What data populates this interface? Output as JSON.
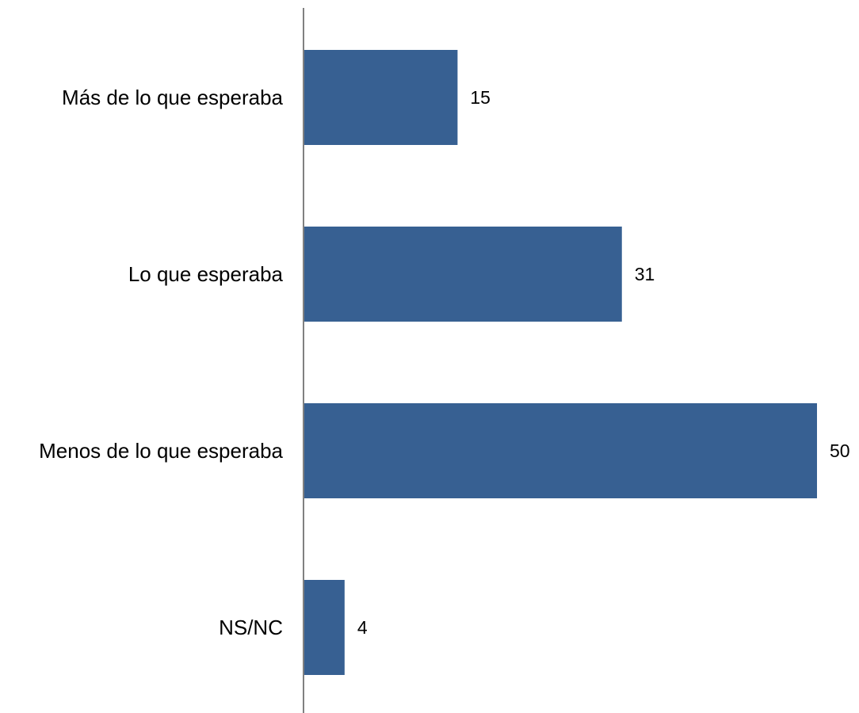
{
  "chart_data": {
    "type": "bar",
    "orientation": "horizontal",
    "categories": [
      "Más de lo que esperaba",
      "Lo que esperaba",
      "Menos de lo que esperaba",
      "NS/NC"
    ],
    "values": [
      15,
      31,
      50,
      4
    ],
    "data_labels": [
      "15",
      "31",
      "50",
      "4"
    ],
    "title": "",
    "xlabel": "",
    "ylabel": "",
    "xlim": [
      0,
      50
    ],
    "grid": false,
    "legend": "none",
    "bar_color": "#376092",
    "axis_color": "#808080"
  }
}
